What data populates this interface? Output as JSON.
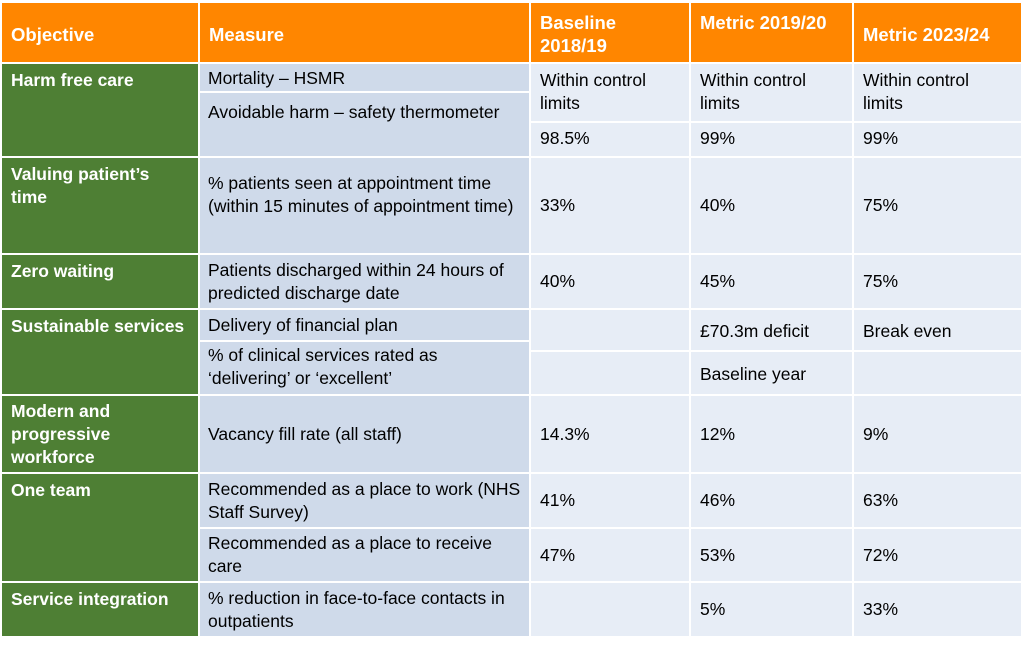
{
  "header": {
    "objective": "Objective",
    "measure": "Measure",
    "baseline": "Baseline 2018/19",
    "metric_1920": "Metric 2019/20",
    "metric_2324": "Metric 2023/24"
  },
  "rows": {
    "harm_free": {
      "objective": "Harm free care",
      "measure_1": "Mortality – HSMR",
      "measure_2": "Avoidable harm – safety thermometer",
      "baseline_1": "Within control limits",
      "baseline_2": "98.5%",
      "m1920_1": "Within control limits",
      "m1920_2": "99%",
      "m2324_1": "Within control limits",
      "m2324_2": "99%"
    },
    "valuing_time": {
      "objective": "Valuing patient’s time",
      "measure": "% patients seen at appointment time (within 15 minutes of appointment time)",
      "baseline": "33%",
      "m1920": "40%",
      "m2324": "75%"
    },
    "zero_waiting": {
      "objective": "Zero waiting",
      "measure": "Patients discharged within 24 hours of predicted discharge date",
      "baseline": "40%",
      "m1920": "45%",
      "m2324": "75%"
    },
    "sustainable": {
      "objective": "Sustainable services",
      "measure_1": "Delivery of financial plan",
      "measure_2": "% of clinical services rated as ‘delivering’ or ‘excellent’",
      "m1920_1": "£70.3m deficit",
      "m2324_1": "Break even",
      "m1920_2": "Baseline year"
    },
    "workforce": {
      "objective": "Modern and progressive workforce",
      "measure": "Vacancy fill rate (all staff)",
      "baseline": "14.3%",
      "m1920": "12%",
      "m2324": "9%"
    },
    "one_team": {
      "objective": "One team",
      "measure_1": "Recommended as a place to work (NHS Staff Survey)",
      "measure_2": "Recommended as a place to receive care",
      "baseline_1": "41%",
      "baseline_2": "47%",
      "m1920_1": "46%",
      "m1920_2": "53%",
      "m2324_1": "63%",
      "m2324_2": "72%"
    },
    "integration": {
      "objective": "Service integration",
      "measure": "% reduction in face-to-face contacts in outpatients",
      "m1920": "5%",
      "m2324": "33%"
    }
  }
}
